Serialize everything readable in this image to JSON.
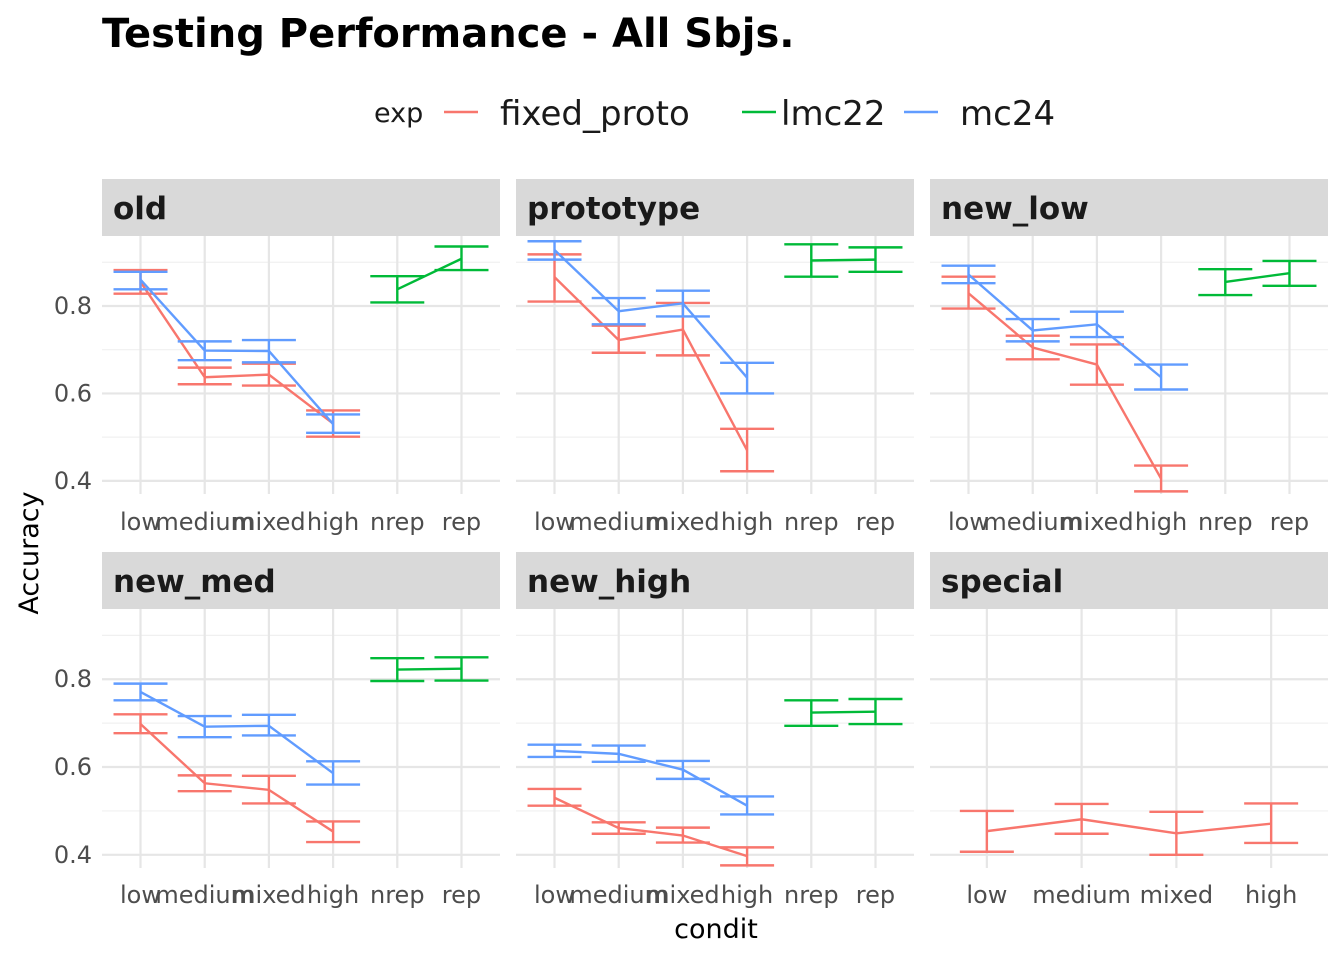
{
  "chart_data": {
    "type": "line",
    "title": "Testing Performance - All Sbjs.",
    "xlabel": "condit",
    "ylabel": "Accuracy",
    "legend": {
      "title": "exp",
      "placement": "top",
      "entries": [
        {
          "name": "fixed_proto",
          "color": "#F8766D"
        },
        {
          "name": "lmc22",
          "color": "#00BA38"
        },
        {
          "name": "mc24",
          "color": "#619CFF"
        }
      ]
    },
    "y_ticks": [
      "0.4",
      "0.6",
      "0.8"
    ],
    "ylim": [
      0.37,
      0.96
    ],
    "grid": true,
    "error_bars": true,
    "panels": [
      {
        "name": "old",
        "categories": [
          "low",
          "medium",
          "mixed",
          "high",
          "nrep",
          "rep"
        ],
        "series": [
          {
            "name": "fixed_proto",
            "points": [
              {
                "x": "low",
                "y": 0.855,
                "lo": 0.828,
                "hi": 0.882
              },
              {
                "x": "medium",
                "y": 0.637,
                "lo": 0.621,
                "hi": 0.659
              },
              {
                "x": "mixed",
                "y": 0.643,
                "lo": 0.618,
                "hi": 0.668
              },
              {
                "x": "high",
                "y": 0.531,
                "lo": 0.501,
                "hi": 0.561
              }
            ]
          },
          {
            "name": "lmc22",
            "points": [
              {
                "x": "nrep",
                "y": 0.838,
                "lo": 0.808,
                "hi": 0.868
              },
              {
                "x": "rep",
                "y": 0.908,
                "lo": 0.882,
                "hi": 0.936
              }
            ]
          },
          {
            "name": "mc24",
            "points": [
              {
                "x": "low",
                "y": 0.86,
                "lo": 0.838,
                "hi": 0.878
              },
              {
                "x": "medium",
                "y": 0.698,
                "lo": 0.676,
                "hi": 0.719
              },
              {
                "x": "mixed",
                "y": 0.697,
                "lo": 0.671,
                "hi": 0.722
              },
              {
                "x": "high",
                "y": 0.53,
                "lo": 0.51,
                "hi": 0.552
              }
            ]
          }
        ]
      },
      {
        "name": "prototype",
        "categories": [
          "low",
          "medium",
          "mixed",
          "high",
          "nrep",
          "rep"
        ],
        "series": [
          {
            "name": "fixed_proto",
            "points": [
              {
                "x": "low",
                "y": 0.866,
                "lo": 0.81,
                "hi": 0.918
              },
              {
                "x": "medium",
                "y": 0.722,
                "lo": 0.693,
                "hi": 0.755
              },
              {
                "x": "mixed",
                "y": 0.746,
                "lo": 0.687,
                "hi": 0.807
              },
              {
                "x": "high",
                "y": 0.47,
                "lo": 0.422,
                "hi": 0.519
              }
            ]
          },
          {
            "name": "lmc22",
            "points": [
              {
                "x": "nrep",
                "y": 0.904,
                "lo": 0.867,
                "hi": 0.941
              },
              {
                "x": "rep",
                "y": 0.906,
                "lo": 0.878,
                "hi": 0.934
              }
            ]
          },
          {
            "name": "mc24",
            "points": [
              {
                "x": "low",
                "y": 0.928,
                "lo": 0.906,
                "hi": 0.948
              },
              {
                "x": "medium",
                "y": 0.788,
                "lo": 0.758,
                "hi": 0.818
              },
              {
                "x": "mixed",
                "y": 0.806,
                "lo": 0.776,
                "hi": 0.835
              },
              {
                "x": "high",
                "y": 0.636,
                "lo": 0.6,
                "hi": 0.67
              }
            ]
          }
        ]
      },
      {
        "name": "new_low",
        "categories": [
          "low",
          "medium",
          "mixed",
          "high",
          "nrep",
          "rep"
        ],
        "series": [
          {
            "name": "fixed_proto",
            "points": [
              {
                "x": "low",
                "y": 0.829,
                "lo": 0.794,
                "hi": 0.867
              },
              {
                "x": "medium",
                "y": 0.705,
                "lo": 0.678,
                "hi": 0.732
              },
              {
                "x": "mixed",
                "y": 0.666,
                "lo": 0.62,
                "hi": 0.712
              },
              {
                "x": "high",
                "y": 0.405,
                "lo": 0.376,
                "hi": 0.435
              }
            ]
          },
          {
            "name": "lmc22",
            "points": [
              {
                "x": "nrep",
                "y": 0.855,
                "lo": 0.825,
                "hi": 0.884
              },
              {
                "x": "rep",
                "y": 0.875,
                "lo": 0.846,
                "hi": 0.903
              }
            ]
          },
          {
            "name": "mc24",
            "points": [
              {
                "x": "low",
                "y": 0.872,
                "lo": 0.852,
                "hi": 0.892
              },
              {
                "x": "medium",
                "y": 0.744,
                "lo": 0.719,
                "hi": 0.77
              },
              {
                "x": "mixed",
                "y": 0.758,
                "lo": 0.729,
                "hi": 0.787
              },
              {
                "x": "high",
                "y": 0.637,
                "lo": 0.609,
                "hi": 0.666
              }
            ]
          }
        ]
      },
      {
        "name": "new_med",
        "categories": [
          "low",
          "medium",
          "mixed",
          "high",
          "nrep",
          "rep"
        ],
        "series": [
          {
            "name": "fixed_proto",
            "points": [
              {
                "x": "low",
                "y": 0.698,
                "lo": 0.677,
                "hi": 0.72
              },
              {
                "x": "medium",
                "y": 0.563,
                "lo": 0.545,
                "hi": 0.581
              },
              {
                "x": "mixed",
                "y": 0.548,
                "lo": 0.517,
                "hi": 0.58
              },
              {
                "x": "high",
                "y": 0.453,
                "lo": 0.429,
                "hi": 0.476
              }
            ]
          },
          {
            "name": "lmc22",
            "points": [
              {
                "x": "nrep",
                "y": 0.822,
                "lo": 0.796,
                "hi": 0.848
              },
              {
                "x": "rep",
                "y": 0.824,
                "lo": 0.797,
                "hi": 0.85
              }
            ]
          },
          {
            "name": "mc24",
            "points": [
              {
                "x": "low",
                "y": 0.771,
                "lo": 0.752,
                "hi": 0.79
              },
              {
                "x": "medium",
                "y": 0.692,
                "lo": 0.668,
                "hi": 0.716
              },
              {
                "x": "mixed",
                "y": 0.694,
                "lo": 0.672,
                "hi": 0.719
              },
              {
                "x": "high",
                "y": 0.586,
                "lo": 0.56,
                "hi": 0.613
              }
            ]
          }
        ]
      },
      {
        "name": "new_high",
        "categories": [
          "low",
          "medium",
          "mixed",
          "high",
          "nrep",
          "rep"
        ],
        "series": [
          {
            "name": "fixed_proto",
            "points": [
              {
                "x": "low",
                "y": 0.53,
                "lo": 0.512,
                "hi": 0.55
              },
              {
                "x": "medium",
                "y": 0.461,
                "lo": 0.448,
                "hi": 0.474
              },
              {
                "x": "mixed",
                "y": 0.444,
                "lo": 0.428,
                "hi": 0.462
              },
              {
                "x": "high",
                "y": 0.397,
                "lo": 0.376,
                "hi": 0.417
              }
            ]
          },
          {
            "name": "lmc22",
            "points": [
              {
                "x": "nrep",
                "y": 0.724,
                "lo": 0.694,
                "hi": 0.752
              },
              {
                "x": "rep",
                "y": 0.726,
                "lo": 0.698,
                "hi": 0.755
              }
            ]
          },
          {
            "name": "mc24",
            "points": [
              {
                "x": "low",
                "y": 0.637,
                "lo": 0.623,
                "hi": 0.651
              },
              {
                "x": "medium",
                "y": 0.63,
                "lo": 0.612,
                "hi": 0.649
              },
              {
                "x": "mixed",
                "y": 0.594,
                "lo": 0.573,
                "hi": 0.614
              },
              {
                "x": "high",
                "y": 0.512,
                "lo": 0.492,
                "hi": 0.533
              }
            ]
          }
        ]
      },
      {
        "name": "special",
        "categories": [
          "low",
          "medium",
          "mixed",
          "high"
        ],
        "series": [
          {
            "name": "fixed_proto",
            "points": [
              {
                "x": "low",
                "y": 0.454,
                "lo": 0.407,
                "hi": 0.5
              },
              {
                "x": "medium",
                "y": 0.481,
                "lo": 0.448,
                "hi": 0.516
              },
              {
                "x": "mixed",
                "y": 0.449,
                "lo": 0.4,
                "hi": 0.498
              },
              {
                "x": "high",
                "y": 0.471,
                "lo": 0.427,
                "hi": 0.517
              }
            ]
          }
        ]
      }
    ]
  }
}
